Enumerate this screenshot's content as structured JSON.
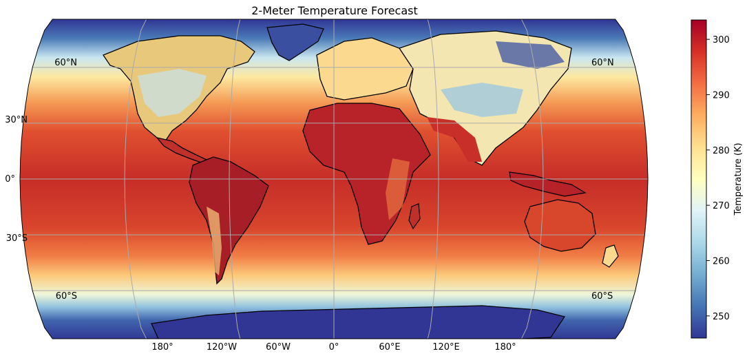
{
  "title": "2-Meter Temperature Forecast",
  "colorbar": {
    "label": "Temperature (K)",
    "ticks": [
      250,
      260,
      270,
      280,
      290,
      300
    ],
    "range": [
      246,
      303.5
    ],
    "colors": [
      "#313695",
      "#4575b4",
      "#74add1",
      "#abd9e9",
      "#e0f3f8",
      "#ffffbf",
      "#fee090",
      "#fdae61",
      "#f46d43",
      "#d73027",
      "#a50026"
    ]
  },
  "gridlines": {
    "lat_labels_left": [
      "60°N",
      "30°N",
      "0°",
      "30°S",
      "60°S"
    ],
    "lat_labels_right": [
      "60°N",
      "60°S"
    ],
    "lon_labels_bottom": [
      "180°",
      "120°W",
      "60°W",
      "0°",
      "60°E",
      "120°E",
      "180°"
    ]
  },
  "projection": "Robinson",
  "colors": {
    "ocean_equatorial": "#c8352a",
    "ocean_midlat": "#f08a4b",
    "polar": "#313695",
    "coastline": "#000000",
    "grid": "#aaaaaa"
  }
}
